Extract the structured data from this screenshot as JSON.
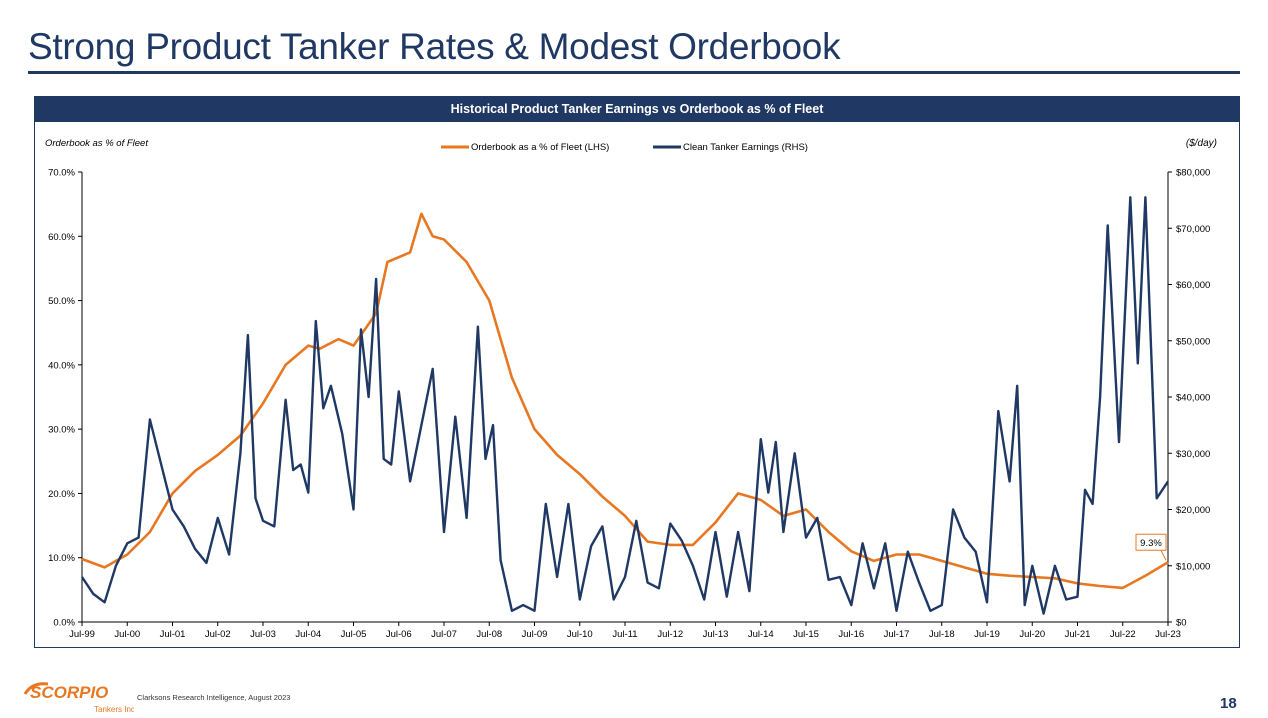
{
  "slide": {
    "title": "Strong Product Tanker Rates & Modest Orderbook",
    "page_number": "18",
    "footer_source": "Clarksons Research Intelligence, August 2023",
    "logo_text": "SCORPIO",
    "logo_subtext": "Tankers Inc."
  },
  "colors": {
    "navy": "#1f3864",
    "orange": "#e87722",
    "earnings_line": "#1f3864",
    "orderbook_line": "#e87722"
  },
  "chart_data": {
    "type": "line",
    "title": "Historical Product Tanker Earnings vs Orderbook as % of Fleet",
    "left_axis_label": "Orderbook as % of Fleet",
    "right_axis_label": "($/day)",
    "left_ticks": [
      "0.0%",
      "10.0%",
      "20.0%",
      "30.0%",
      "40.0%",
      "50.0%",
      "60.0%",
      "70.0%"
    ],
    "right_ticks": [
      "$0",
      "$10,000",
      "$20,000",
      "$30,000",
      "$40,000",
      "$50,000",
      "$60,000",
      "$70,000",
      "$80,000"
    ],
    "ylim_left": [
      0,
      70
    ],
    "ylim_right": [
      0,
      80000
    ],
    "x_ticks": [
      "Jul-99",
      "Jul-00",
      "Jul-01",
      "Jul-02",
      "Jul-03",
      "Jul-04",
      "Jul-05",
      "Jul-06",
      "Jul-07",
      "Jul-08",
      "Jul-09",
      "Jul-10",
      "Jul-11",
      "Jul-12",
      "Jul-13",
      "Jul-14",
      "Jul-15",
      "Jul-16",
      "Jul-17",
      "Jul-18",
      "Jul-19",
      "Jul-20",
      "Jul-21",
      "Jul-22",
      "Jul-23"
    ],
    "x_range": [
      "1999-07",
      "2023-07"
    ],
    "grid": false,
    "legend_position": "top-center",
    "annotation": {
      "text": "9.3%",
      "x": "2023-07",
      "series": "Orderbook as a % of Fleet (LHS)"
    },
    "series": [
      {
        "name": "Orderbook as a % of Fleet (LHS)",
        "axis": "left",
        "points": [
          [
            "1999-07",
            9.8
          ],
          [
            "2000-01",
            8.5
          ],
          [
            "2000-07",
            10.5
          ],
          [
            "2001-01",
            14
          ],
          [
            "2001-07",
            20
          ],
          [
            "2002-01",
            23.5
          ],
          [
            "2002-07",
            26
          ],
          [
            "2003-01",
            29
          ],
          [
            "2003-07",
            34
          ],
          [
            "2004-01",
            40
          ],
          [
            "2004-07",
            43
          ],
          [
            "2004-10",
            42.5
          ],
          [
            "2005-03",
            44
          ],
          [
            "2005-07",
            43
          ],
          [
            "2006-01",
            48
          ],
          [
            "2006-04",
            56
          ],
          [
            "2006-10",
            57.5
          ],
          [
            "2007-01",
            63.5
          ],
          [
            "2007-04",
            60
          ],
          [
            "2007-07",
            59.5
          ],
          [
            "2008-01",
            56
          ],
          [
            "2008-07",
            50
          ],
          [
            "2009-01",
            38
          ],
          [
            "2009-07",
            30
          ],
          [
            "2010-01",
            26
          ],
          [
            "2010-07",
            23
          ],
          [
            "2011-01",
            19.5
          ],
          [
            "2011-07",
            16.5
          ],
          [
            "2012-01",
            12.5
          ],
          [
            "2012-07",
            12
          ],
          [
            "2013-01",
            12
          ],
          [
            "2013-07",
            15.5
          ],
          [
            "2014-01",
            20
          ],
          [
            "2014-07",
            19
          ],
          [
            "2015-01",
            16.5
          ],
          [
            "2015-07",
            17.5
          ],
          [
            "2016-01",
            14
          ],
          [
            "2016-07",
            11
          ],
          [
            "2017-01",
            9.5
          ],
          [
            "2017-07",
            10.5
          ],
          [
            "2018-01",
            10.5
          ],
          [
            "2018-07",
            9.5
          ],
          [
            "2019-01",
            8.5
          ],
          [
            "2019-07",
            7.5
          ],
          [
            "2020-01",
            7.2
          ],
          [
            "2020-07",
            7.0
          ],
          [
            "2021-01",
            6.8
          ],
          [
            "2021-07",
            6.0
          ],
          [
            "2022-01",
            5.6
          ],
          [
            "2022-07",
            5.3
          ],
          [
            "2023-01",
            7.2
          ],
          [
            "2023-07",
            9.3
          ]
        ]
      },
      {
        "name": "Clean Tanker Earnings (RHS)",
        "axis": "right",
        "points": [
          [
            "1999-07",
            8000
          ],
          [
            "1999-10",
            5000
          ],
          [
            "2000-01",
            3500
          ],
          [
            "2000-04",
            10000
          ],
          [
            "2000-07",
            14000
          ],
          [
            "2000-10",
            15000
          ],
          [
            "2001-01",
            36000
          ],
          [
            "2001-04",
            28000
          ],
          [
            "2001-07",
            20000
          ],
          [
            "2001-10",
            17000
          ],
          [
            "2002-01",
            13000
          ],
          [
            "2002-04",
            10500
          ],
          [
            "2002-07",
            18500
          ],
          [
            "2002-10",
            12000
          ],
          [
            "2003-01",
            30000
          ],
          [
            "2003-03",
            51000
          ],
          [
            "2003-05",
            22000
          ],
          [
            "2003-07",
            18000
          ],
          [
            "2003-10",
            17000
          ],
          [
            "2004-01",
            39500
          ],
          [
            "2004-03",
            27000
          ],
          [
            "2004-05",
            28000
          ],
          [
            "2004-07",
            23000
          ],
          [
            "2004-09",
            53500
          ],
          [
            "2004-11",
            38000
          ],
          [
            "2005-01",
            42000
          ],
          [
            "2005-04",
            33500
          ],
          [
            "2005-07",
            20000
          ],
          [
            "2005-09",
            52000
          ],
          [
            "2005-11",
            40000
          ],
          [
            "2006-01",
            61000
          ],
          [
            "2006-03",
            29000
          ],
          [
            "2006-05",
            28000
          ],
          [
            "2006-07",
            41000
          ],
          [
            "2006-10",
            25000
          ],
          [
            "2007-01",
            35000
          ],
          [
            "2007-04",
            45000
          ],
          [
            "2007-07",
            16000
          ],
          [
            "2007-10",
            36500
          ],
          [
            "2008-01",
            18500
          ],
          [
            "2008-04",
            52500
          ],
          [
            "2008-06",
            29000
          ],
          [
            "2008-08",
            35000
          ],
          [
            "2008-10",
            11000
          ],
          [
            "2009-01",
            2000
          ],
          [
            "2009-04",
            3000
          ],
          [
            "2009-07",
            2000
          ],
          [
            "2009-10",
            21000
          ],
          [
            "2010-01",
            8000
          ],
          [
            "2010-04",
            21000
          ],
          [
            "2010-07",
            4000
          ],
          [
            "2010-10",
            13500
          ],
          [
            "2011-01",
            17000
          ],
          [
            "2011-04",
            4000
          ],
          [
            "2011-07",
            8000
          ],
          [
            "2011-10",
            18000
          ],
          [
            "2012-01",
            7000
          ],
          [
            "2012-04",
            6000
          ],
          [
            "2012-07",
            17500
          ],
          [
            "2012-10",
            14500
          ],
          [
            "2013-01",
            10000
          ],
          [
            "2013-04",
            4000
          ],
          [
            "2013-07",
            16000
          ],
          [
            "2013-10",
            4500
          ],
          [
            "2014-01",
            16000
          ],
          [
            "2014-04",
            5500
          ],
          [
            "2014-07",
            32500
          ],
          [
            "2014-09",
            23000
          ],
          [
            "2014-11",
            32000
          ],
          [
            "2015-01",
            16000
          ],
          [
            "2015-04",
            30000
          ],
          [
            "2015-07",
            15000
          ],
          [
            "2015-10",
            18500
          ],
          [
            "2016-01",
            7500
          ],
          [
            "2016-04",
            8000
          ],
          [
            "2016-07",
            3000
          ],
          [
            "2016-10",
            14000
          ],
          [
            "2017-01",
            6000
          ],
          [
            "2017-04",
            14000
          ],
          [
            "2017-07",
            2000
          ],
          [
            "2017-10",
            12500
          ],
          [
            "2018-01",
            7000
          ],
          [
            "2018-04",
            2000
          ],
          [
            "2018-07",
            3000
          ],
          [
            "2018-10",
            20000
          ],
          [
            "2019-01",
            15000
          ],
          [
            "2019-04",
            12500
          ],
          [
            "2019-07",
            3500
          ],
          [
            "2019-10",
            37500
          ],
          [
            "2020-01",
            25000
          ],
          [
            "2020-03",
            42000
          ],
          [
            "2020-05",
            3000
          ],
          [
            "2020-07",
            10000
          ],
          [
            "2020-10",
            1500
          ],
          [
            "2021-01",
            10000
          ],
          [
            "2021-04",
            4000
          ],
          [
            "2021-07",
            4500
          ],
          [
            "2021-09",
            23500
          ],
          [
            "2021-11",
            21000
          ],
          [
            "2022-01",
            40000
          ],
          [
            "2022-03",
            70500
          ],
          [
            "2022-06",
            32000
          ],
          [
            "2022-09",
            75500
          ],
          [
            "2022-11",
            46000
          ],
          [
            "2023-01",
            75500
          ],
          [
            "2023-04",
            22000
          ],
          [
            "2023-07",
            25000
          ]
        ]
      }
    ]
  }
}
